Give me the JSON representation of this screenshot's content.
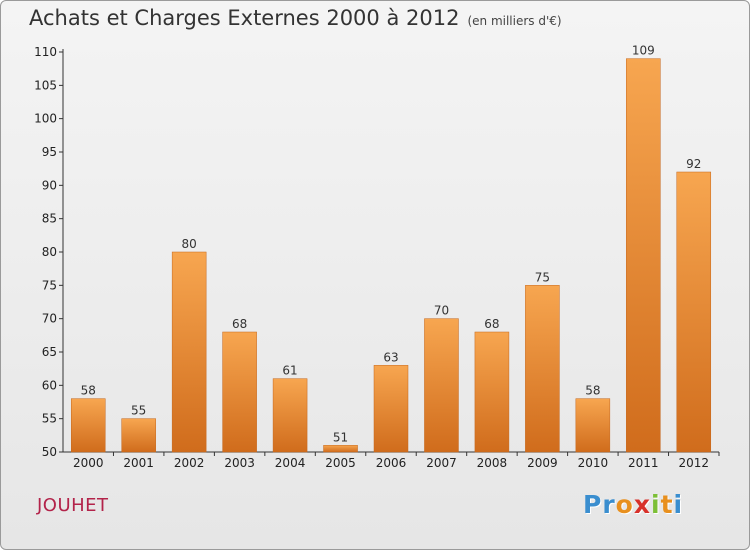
{
  "chart_data": {
    "type": "bar",
    "title": "Achats et Charges Externes 2000 à 2012",
    "subtitle": "(en milliers d'€)",
    "xlabel": "",
    "ylabel": "",
    "categories": [
      "2000",
      "2001",
      "2002",
      "2003",
      "2004",
      "2005",
      "2006",
      "2007",
      "2008",
      "2009",
      "2010",
      "2011",
      "2012"
    ],
    "values": [
      58,
      55,
      80,
      68,
      61,
      51,
      63,
      70,
      68,
      75,
      58,
      109,
      92
    ],
    "ylim": [
      50,
      110
    ],
    "yticks": [
      50,
      55,
      60,
      65,
      70,
      75,
      80,
      85,
      90,
      95,
      100,
      105,
      110
    ],
    "grid": false,
    "bar_color": "#e8822c"
  },
  "commune": "JOUHET",
  "brand": {
    "letters": [
      "P",
      "r",
      "o",
      "x",
      "i",
      "t",
      "i"
    ],
    "colors": [
      "#3a8ecf",
      "#3a8ecf",
      "#e8901e",
      "#d8312a",
      "#7cbf36",
      "#e8901e",
      "#3a8ecf"
    ]
  }
}
